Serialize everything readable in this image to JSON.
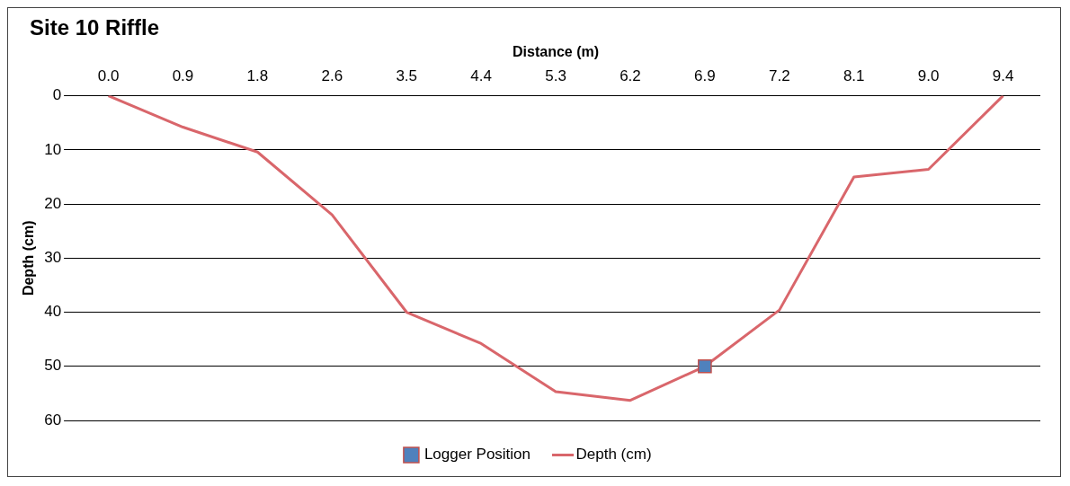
{
  "chart_data": {
    "type": "line",
    "title": "Site 10 Riffle",
    "xlabel": "Distance (m)",
    "ylabel": "Depth (cm)",
    "categories": [
      "0.0",
      "0.9",
      "1.8",
      "2.6",
      "3.5",
      "4.4",
      "5.3",
      "6.2",
      "6.9",
      "7.2",
      "8.1",
      "9.0",
      "9.4"
    ],
    "series": [
      {
        "name": "Logger Position",
        "type": "scatter",
        "marker": "square",
        "color": "#4f81bd",
        "x": [
          "6.9"
        ],
        "values": [
          50
        ]
      },
      {
        "name": "Depth (cm)",
        "color": "#d9666b",
        "values": [
          0,
          5.8,
          10.4,
          22,
          40,
          45.8,
          54.7,
          56.3,
          50,
          39.6,
          15,
          13.6,
          0
        ]
      }
    ],
    "ylim": [
      60,
      0
    ],
    "yticks": [
      0,
      10,
      20,
      30,
      40,
      50,
      60
    ],
    "grid": "y",
    "legend": "bottom",
    "marker": "none"
  }
}
